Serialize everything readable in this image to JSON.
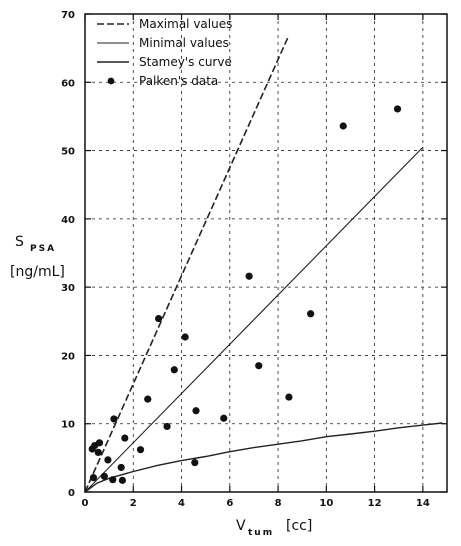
{
  "chart_data": {
    "type": "scatter",
    "title": "",
    "xlabel": {
      "main": "V",
      "sub": "tum",
      "unit": "[cc]"
    },
    "ylabel": {
      "main": "S",
      "sub": "PSA",
      "unit": "[ng/mL]"
    },
    "xlim": [
      0,
      15
    ],
    "ylim": [
      0,
      70
    ],
    "xticks": [
      0,
      2,
      4,
      6,
      8,
      10,
      12,
      14
    ],
    "yticks": [
      0,
      10,
      20,
      30,
      40,
      50,
      60,
      70
    ],
    "grid": true,
    "legend_position": "top-left",
    "series": [
      {
        "name": "Maximal values",
        "style": "dashed",
        "points": [
          [
            0,
            0
          ],
          [
            8.4,
            66.5
          ]
        ]
      },
      {
        "name": "Minimal values",
        "style": "thin",
        "points": [
          [
            0,
            0
          ],
          [
            14,
            50.5
          ]
        ]
      },
      {
        "name": "Stamey's curve",
        "style": "solid",
        "points": [
          [
            0,
            0
          ],
          [
            0.5,
            1.3
          ],
          [
            1,
            2
          ],
          [
            2,
            3
          ],
          [
            3,
            3.9
          ],
          [
            4,
            4.6
          ],
          [
            5,
            5.2
          ],
          [
            6,
            5.9
          ],
          [
            7,
            6.5
          ],
          [
            8,
            7
          ],
          [
            9,
            7.5
          ],
          [
            10,
            8.1
          ],
          [
            11,
            8.5
          ],
          [
            12,
            8.9
          ],
          [
            13,
            9.4
          ],
          [
            14,
            9.8
          ],
          [
            14.8,
            10.1
          ]
        ]
      },
      {
        "name": "Palken's data",
        "style": "markers",
        "points": [
          [
            0.3,
            6.3
          ],
          [
            0.4,
            6.8
          ],
          [
            0.55,
            5.8
          ],
          [
            0.6,
            7.2
          ],
          [
            0.35,
            2.1
          ],
          [
            0.8,
            2.3
          ],
          [
            0.95,
            4.7
          ],
          [
            1.15,
            1.8
          ],
          [
            1.2,
            10.7
          ],
          [
            1.5,
            3.6
          ],
          [
            1.55,
            1.7
          ],
          [
            1.65,
            7.9
          ],
          [
            2.3,
            6.2
          ],
          [
            2.6,
            13.6
          ],
          [
            3.05,
            25.4
          ],
          [
            3.4,
            9.6
          ],
          [
            3.7,
            17.9
          ],
          [
            4.15,
            22.7
          ],
          [
            4.55,
            4.3
          ],
          [
            4.6,
            11.9
          ],
          [
            5.75,
            10.8
          ],
          [
            6.8,
            31.6
          ],
          [
            7.2,
            18.5
          ],
          [
            8.45,
            13.9
          ],
          [
            9.35,
            26.1
          ],
          [
            10.7,
            53.6
          ],
          [
            12.95,
            56.1
          ]
        ]
      }
    ]
  },
  "colors": {
    "line": "#222222",
    "marker": "#111111",
    "grid": "#222222",
    "background": "#ffffff"
  }
}
